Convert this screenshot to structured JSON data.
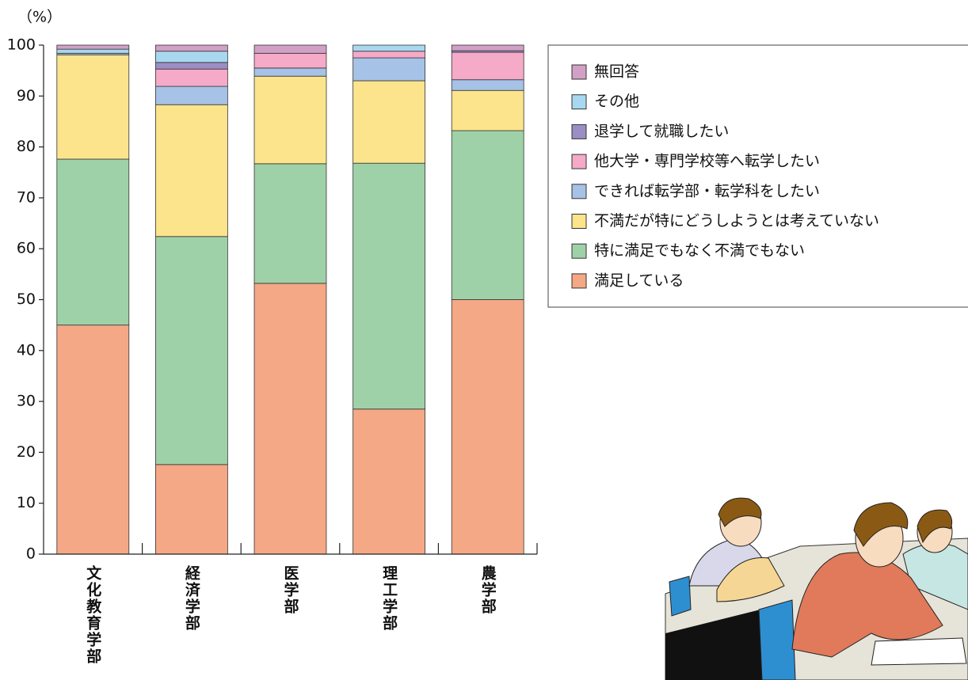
{
  "chart_data": {
    "type": "stacked-bar",
    "y_axis_label": "（%）",
    "categories": [
      "文化教育学部",
      "経済学部",
      "医学部",
      "理工学部",
      "農学部"
    ],
    "ylim": [
      0,
      100
    ],
    "yticks": [
      0,
      10,
      20,
      30,
      40,
      50,
      60,
      70,
      80,
      90,
      100
    ],
    "legend_position": "right",
    "series": [
      {
        "name": "満足している",
        "color": "#f4a886",
        "values": [
          45,
          17.6,
          53.2,
          28.5,
          50
        ]
      },
      {
        "name": "特に満足でもなく不満でもない",
        "color": "#9fd1a8",
        "values": [
          32.6,
          44.8,
          23.5,
          48.3,
          33.2
        ]
      },
      {
        "name": "不満だが特にどうしようとは考えていない",
        "color": "#fce48c",
        "values": [
          20.5,
          25.9,
          17.2,
          16.2,
          7.9
        ]
      },
      {
        "name": "できれば転学部・転学科をしたい",
        "color": "#a6c2e6",
        "values": [
          0.3,
          3.6,
          1.6,
          4.5,
          2.1
        ]
      },
      {
        "name": "他大学・専門学校等へ転学したい",
        "color": "#f5aac8",
        "values": [
          0,
          3.4,
          2.9,
          1.3,
          5.4
        ]
      },
      {
        "name": "退学して就職したい",
        "color": "#9b8ec4",
        "values": [
          0,
          1.3,
          0,
          0,
          0.3
        ]
      },
      {
        "name": "その他",
        "color": "#a8d8f0",
        "values": [
          0.8,
          2.2,
          0,
          1.2,
          0
        ]
      },
      {
        "name": "無回答",
        "color": "#d2a0c6",
        "values": [
          0.8,
          1.2,
          1.6,
          0,
          1.1
        ]
      }
    ]
  }
}
